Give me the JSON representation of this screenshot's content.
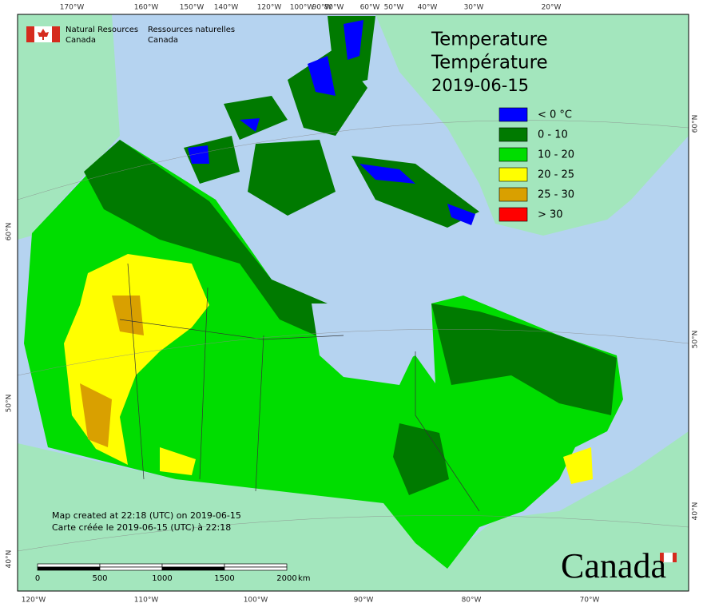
{
  "header": {
    "agency_en": [
      "Natural Resources",
      "Canada"
    ],
    "agency_fr": [
      "Ressources naturelles",
      "Canada"
    ]
  },
  "title": [
    "Temperature",
    "Température",
    "2019-06-15"
  ],
  "legend": [
    {
      "label": "< 0 °C",
      "color": "#0000ff"
    },
    {
      "label": "0 - 10",
      "color": "#007a00"
    },
    {
      "label": "10 - 20",
      "color": "#00dd00"
    },
    {
      "label": "20 - 25",
      "color": "#ffff00"
    },
    {
      "label": "25 - 30",
      "color": "#d9a000"
    },
    {
      "label": "> 30",
      "color": "#ff0000"
    }
  ],
  "top_ticks": [
    "170°W",
    "160°W",
    "150°W",
    "140°W",
    "120°W",
    "100°W",
    "90°W",
    "80°W",
    "60°W",
    "50°W",
    "40°W",
    "30°W",
    "20°W"
  ],
  "bottom_ticks": [
    "120°W",
    "110°W",
    "100°W",
    "90°W",
    "80°W",
    "70°W"
  ],
  "left_ticks": [
    "60°N",
    "50°N",
    "40°N"
  ],
  "right_ticks": [
    "60°N",
    "50°N",
    "40°N"
  ],
  "footer": [
    "Map created at 22:18 (UTC) on 2019-06-15",
    "Carte créée le 2019-06-15 (UTC) à 22:18"
  ],
  "scale": {
    "labels": [
      "0",
      "500",
      "1000",
      "1500",
      "2000"
    ],
    "unit": "km"
  },
  "wordmark": "Canada"
}
